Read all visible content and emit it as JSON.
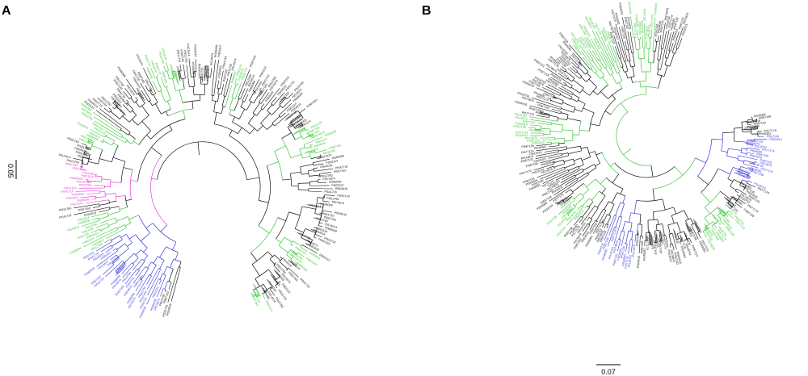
{
  "panels": [
    {
      "letter": "A",
      "scale_label": "0.05",
      "label_samples": [
        "PI504016",
        "PI541716",
        "PI567163",
        "PI612760",
        "PI574574",
        "PI585009",
        "PI601114"
      ]
    },
    {
      "letter": "B",
      "scale_label": "0.07",
      "label_samples": [
        "PI548381",
        "PI567158",
        "PI504016",
        "PI567102",
        "PI574876",
        "PI518753",
        "PI577179"
      ]
    }
  ],
  "colors": {
    "default": "#111111",
    "green": "#3cc43c",
    "blue": "#3a3ad6",
    "magenta": "#e040d0"
  }
}
